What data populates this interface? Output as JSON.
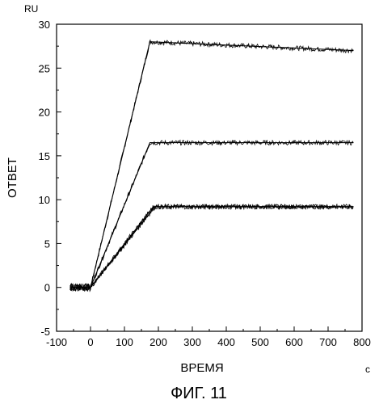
{
  "chart_data": {
    "type": "line",
    "title": "",
    "caption": "ФИГ. 11",
    "xlabel": "ВРЕМЯ",
    "xunit": "c",
    "ylabel": "ОТВЕТ",
    "yunit": "RU",
    "xlim": [
      -100,
      800
    ],
    "ylim": [
      -5,
      30
    ],
    "xticks": [
      -100,
      0,
      100,
      200,
      300,
      400,
      500,
      600,
      700,
      800
    ],
    "yticks": [
      -5,
      0,
      5,
      10,
      15,
      20,
      25,
      30
    ],
    "grid": false,
    "legend": "none",
    "series": [
      {
        "x": [
          -60,
          0,
          175,
          775
        ],
        "y": [
          0,
          0,
          28,
          27
        ]
      },
      {
        "x": [
          -60,
          0,
          175,
          775
        ],
        "y": [
          0,
          0,
          16.5,
          16.5
        ]
      },
      {
        "x": [
          -60,
          0,
          185,
          775
        ],
        "y": [
          0,
          0,
          9.2,
          9.2
        ]
      },
      {
        "x": [
          -60,
          0,
          190,
          775
        ],
        "y": [
          0,
          0,
          9.2,
          9.2
        ]
      }
    ]
  }
}
